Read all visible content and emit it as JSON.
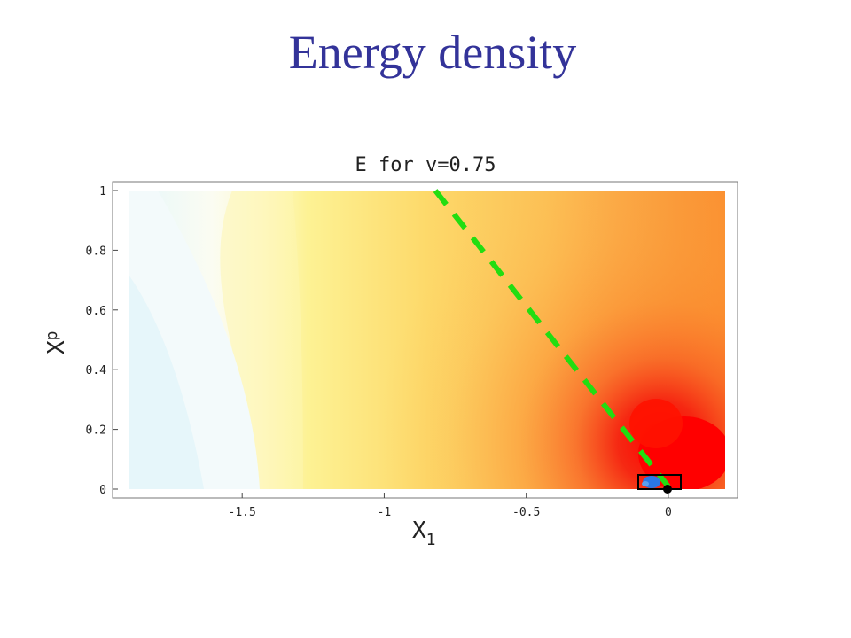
{
  "slide": {
    "title": "Energy density"
  },
  "chart_data": {
    "type": "heatmap",
    "title": "E for v=0.75",
    "xlabel": "X",
    "xlabel_sub": "1",
    "ylabel": "X",
    "ylabel_sub": "p",
    "xlim": [
      -1.9,
      0.2
    ],
    "ylim": [
      0,
      1
    ],
    "x_ticks": [
      {
        "value": -1.5,
        "label": "-1.5"
      },
      {
        "value": -1.0,
        "label": "-1"
      },
      {
        "value": -0.5,
        "label": "-0.5"
      },
      {
        "value": 0.0,
        "label": "0"
      }
    ],
    "y_ticks": [
      {
        "value": 0.0,
        "label": "0"
      },
      {
        "value": 0.2,
        "label": "0.2"
      },
      {
        "value": 0.4,
        "label": "0.4"
      },
      {
        "value": 0.6,
        "label": "0.6"
      },
      {
        "value": 0.8,
        "label": "0.8"
      },
      {
        "value": 1.0,
        "label": "1"
      }
    ],
    "colormap": [
      "#e6f7fb",
      "#fdfbe3",
      "#fdf28c",
      "#fcc35a",
      "#fb8c2c",
      "#f41d08",
      "#ff0000"
    ],
    "dashed_line": {
      "color": "#22dd11",
      "from": [
        -0.82,
        1.0
      ],
      "to": [
        0.0,
        0.0
      ]
    },
    "marker_point": {
      "x": 0.0,
      "y": 0.0,
      "color": "#000000"
    },
    "highlight_box": {
      "x": [
        -0.1,
        0.05
      ],
      "y": [
        0.0,
        0.05
      ]
    },
    "blue_blob": {
      "x": -0.05,
      "y": 0.02,
      "color": "#2a78e6"
    }
  }
}
